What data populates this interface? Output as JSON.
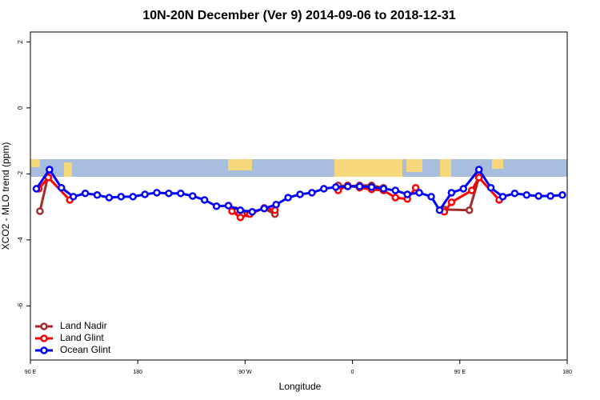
{
  "chart_data": {
    "type": "line",
    "title": "10N-20N December (Ver 9)   2014-09-06 to 2018-12-31",
    "x_label": "Longitude",
    "y_label": "XCO2 - MLO trend (ppm)",
    "xlim": [
      90,
      540
    ],
    "xticks": [
      {
        "value": 90,
        "label": "90 E"
      },
      {
        "value": 180,
        "label": "180"
      },
      {
        "value": 270,
        "label": "90 W"
      },
      {
        "value": 360,
        "label": "0"
      },
      {
        "value": 450,
        "label": "90 E"
      },
      {
        "value": 540,
        "label": "180"
      }
    ],
    "ylim": [
      -7.64,
      2.3
    ],
    "yticks": [
      -6,
      -4,
      -2,
      0,
      2
    ],
    "legend": "bottom-left",
    "series": [
      {
        "name": "Land Nadir",
        "color": "#a52a2a",
        "x": [
          98,
          106,
          null,
          262,
          272,
          286,
          295,
          null,
          348,
          356,
          366,
          376,
          386,
          null,
          437,
          458,
          466
        ],
        "values": [
          -3.13,
          -1.87,
          null,
          -3.1,
          -3.2,
          -3.05,
          -3.22,
          null,
          -2.35,
          -2.38,
          -2.35,
          -2.35,
          -2.42,
          null,
          -3.08,
          -3.1,
          -2.11
        ]
      },
      {
        "name": "Land Glint",
        "color": "#ff0000",
        "x": [
          97,
          105,
          123,
          null,
          259,
          266,
          274,
          286,
          295,
          null,
          348,
          356,
          366,
          376,
          386,
          396,
          406,
          413,
          null,
          437,
          443,
          460,
          466,
          483
        ],
        "values": [
          -2.45,
          -2.11,
          -2.79,
          null,
          -3.13,
          -3.32,
          -3.22,
          -3.03,
          -3.1,
          null,
          -2.5,
          -2.35,
          -2.42,
          -2.47,
          -2.5,
          -2.72,
          -2.76,
          -2.42,
          null,
          -3.15,
          -2.86,
          -2.5,
          -2.11,
          -2.79
        ]
      },
      {
        "name": "Ocean Glint",
        "color": "#0000ff",
        "x": [
          95,
          106,
          116,
          126,
          136,
          146,
          156,
          166,
          176,
          186,
          196,
          206,
          216,
          226,
          236,
          246,
          256,
          266,
          276,
          286,
          296,
          306,
          316,
          326,
          336,
          346,
          356,
          366,
          376,
          386,
          396,
          406,
          416,
          426,
          433,
          443,
          453,
          466,
          476,
          486,
          496,
          506,
          516,
          526,
          536
        ],
        "values": [
          -2.45,
          -1.87,
          -2.42,
          -2.69,
          -2.59,
          -2.64,
          -2.72,
          -2.69,
          -2.69,
          -2.62,
          -2.57,
          -2.59,
          -2.59,
          -2.67,
          -2.79,
          -2.98,
          -2.96,
          -3.1,
          -3.15,
          -3.05,
          -2.93,
          -2.72,
          -2.62,
          -2.57,
          -2.45,
          -2.4,
          -2.38,
          -2.38,
          -2.4,
          -2.45,
          -2.5,
          -2.62,
          -2.57,
          -2.69,
          -3.1,
          -2.57,
          -2.45,
          -1.87,
          -2.42,
          -2.69,
          -2.59,
          -2.64,
          -2.67,
          -2.67,
          -2.64
        ]
      }
    ]
  }
}
